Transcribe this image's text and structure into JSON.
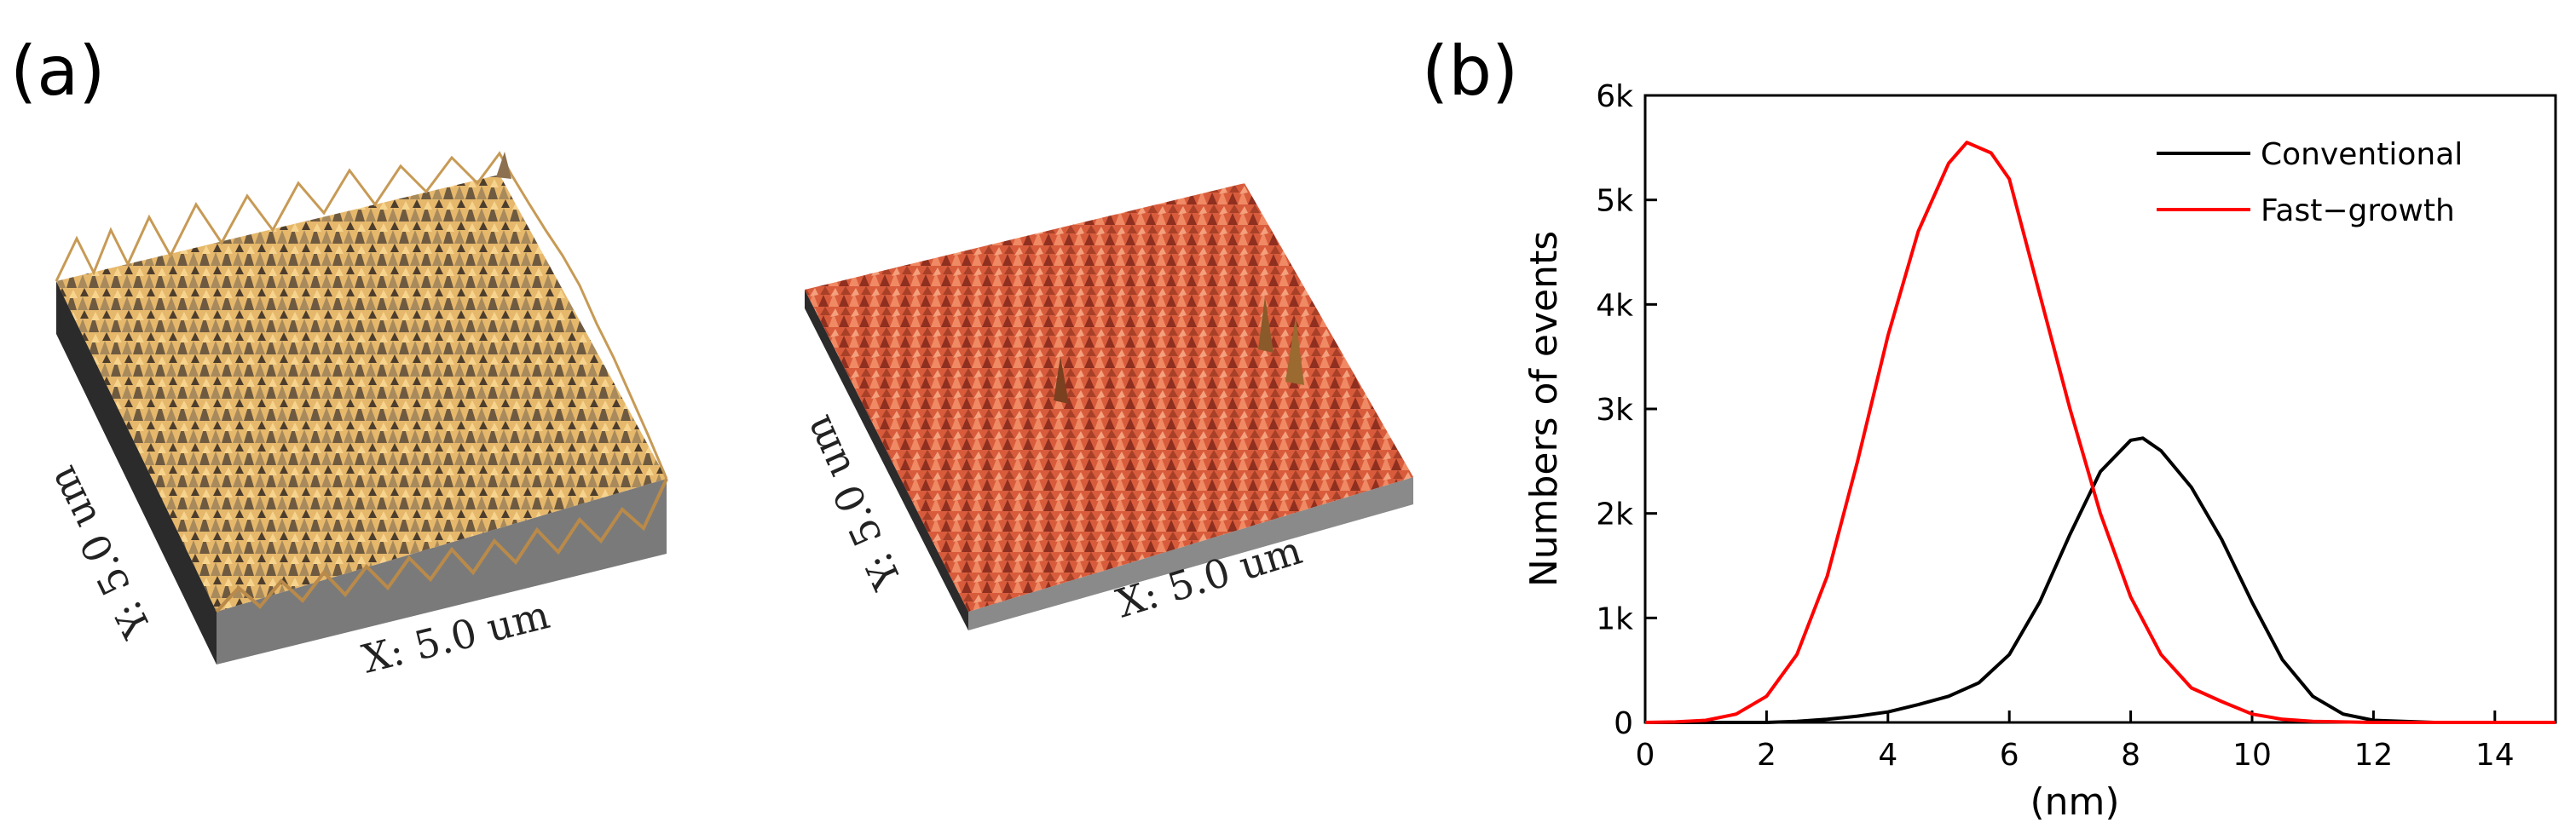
{
  "panels": {
    "a_label": "(a)",
    "b_label": "(b)"
  },
  "afm": {
    "left": {
      "x_label": "X: 5.0 um",
      "y_label": "Y: 5.0 um",
      "surface_color": "#e2b36a"
    },
    "right": {
      "x_label": "X: 5.0 um",
      "y_label": "Y: 5.0 um",
      "surface_color": "#d8603e"
    }
  },
  "colors": {
    "conventional": "#000000",
    "fast_growth": "#ff0000"
  },
  "chart_data": {
    "type": "line",
    "title": "",
    "xlabel": "(nm)",
    "ylabel": "Numbers of events",
    "xlim": [
      0,
      15
    ],
    "ylim": [
      0,
      6000
    ],
    "xticks": [
      0,
      2,
      4,
      6,
      8,
      10,
      12,
      14
    ],
    "yticks": [
      0,
      1000,
      2000,
      3000,
      4000,
      5000,
      6000
    ],
    "ytick_labels": [
      "0",
      "1k",
      "2k",
      "3k",
      "4k",
      "5k",
      "6k"
    ],
    "legend_position": "top-right",
    "series": [
      {
        "name": "Conventional",
        "color": "#000000",
        "x": [
          0,
          1,
          2,
          2.5,
          3,
          3.5,
          4,
          4.5,
          5,
          5.5,
          6,
          6.5,
          7,
          7.5,
          8,
          8.2,
          8.5,
          9,
          9.5,
          10,
          10.5,
          11,
          11.5,
          12,
          13,
          15
        ],
        "y": [
          0,
          0,
          0,
          10,
          30,
          60,
          100,
          170,
          250,
          380,
          650,
          1150,
          1800,
          2400,
          2700,
          2720,
          2600,
          2250,
          1750,
          1150,
          600,
          250,
          80,
          20,
          0,
          0
        ]
      },
      {
        "name": "Fast−growth",
        "color": "#ff0000",
        "x": [
          0,
          0.5,
          1,
          1.5,
          2,
          2.5,
          3,
          3.5,
          4,
          4.5,
          5,
          5.3,
          5.7,
          6,
          6.5,
          7,
          7.5,
          8,
          8.5,
          9,
          9.5,
          10,
          10.5,
          11,
          12,
          15
        ],
        "y": [
          0,
          5,
          20,
          80,
          250,
          650,
          1400,
          2500,
          3700,
          4700,
          5350,
          5550,
          5450,
          5200,
          4100,
          3000,
          2000,
          1200,
          650,
          330,
          200,
          80,
          30,
          10,
          0,
          0
        ]
      }
    ]
  }
}
